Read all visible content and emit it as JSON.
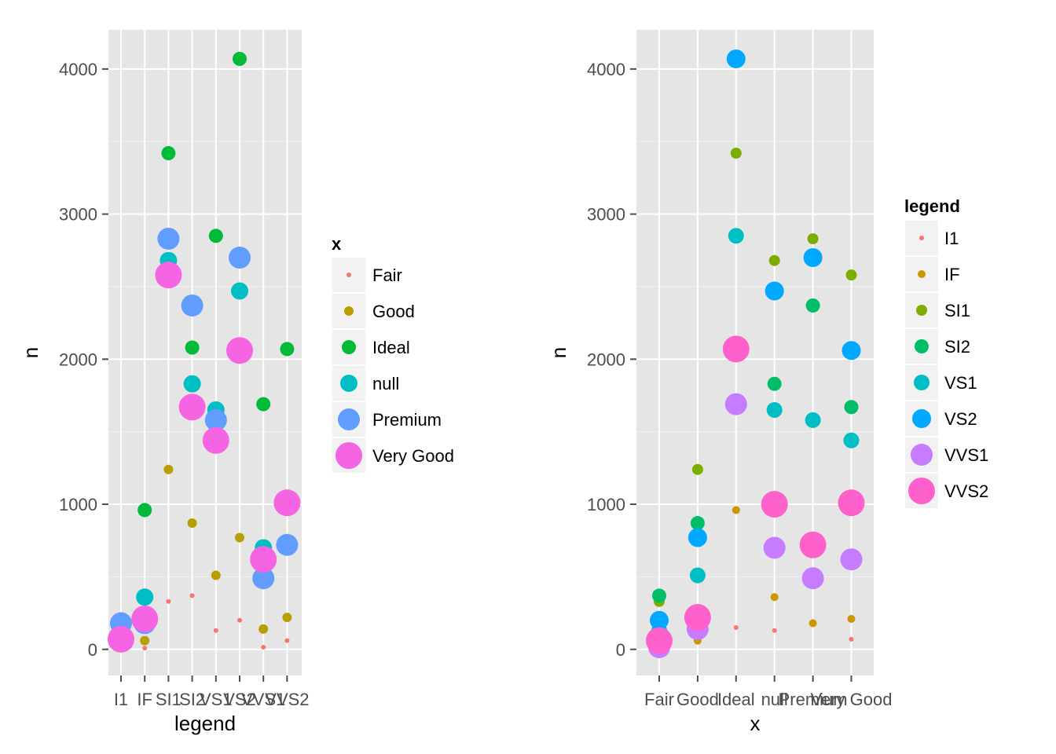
{
  "chart_data": [
    {
      "type": "scatter",
      "xlabel": "legend",
      "ylabel": "n",
      "ylim": [
        -180,
        4270
      ],
      "yticks": [
        0,
        1000,
        2000,
        3000,
        4000
      ],
      "ytick_labels": [
        "0",
        "1000",
        "2000",
        "3000",
        "4000"
      ],
      "categories": [
        "I1",
        "IF",
        "SI1",
        "SI2",
        "VS1",
        "VS2",
        "VVS1",
        "VVS2"
      ],
      "grid": true,
      "legend_title": "x",
      "legend_position": "right",
      "series": [
        {
          "name": "Fair",
          "color": "#F8766D",
          "size": 3,
          "values": [
            170,
            9,
            330,
            370,
            130,
            200,
            15,
            60
          ]
        },
        {
          "name": "Good",
          "color": "#B79F00",
          "size": 6,
          "values": [
            100,
            60,
            1240,
            870,
            510,
            770,
            140,
            220
          ]
        },
        {
          "name": "Ideal",
          "color": "#00BA38",
          "size": 9,
          "values": [
            150,
            960,
            3420,
            2080,
            2850,
            4070,
            1690,
            2070
          ]
        },
        {
          "name": "null",
          "color": "#00BFC4",
          "size": 11,
          "values": [
            130,
            360,
            2680,
            1830,
            1650,
            2470,
            700,
            1000
          ]
        },
        {
          "name": "Premium",
          "color": "#619CFF",
          "size": 14,
          "values": [
            180,
            180,
            2830,
            2370,
            1580,
            2700,
            490,
            720
          ]
        },
        {
          "name": "Very Good",
          "color": "#F564E3",
          "size": 17,
          "values": [
            70,
            210,
            2580,
            1670,
            1440,
            2060,
            620,
            1010
          ]
        }
      ]
    },
    {
      "type": "scatter",
      "xlabel": "x",
      "ylabel": "n",
      "ylim": [
        -180,
        4270
      ],
      "yticks": [
        0,
        1000,
        2000,
        3000,
        4000
      ],
      "ytick_labels": [
        "0",
        "1000",
        "2000",
        "3000",
        "4000"
      ],
      "categories": [
        "Fair",
        "Good",
        "Ideal",
        "null",
        "Premium",
        "Very Good"
      ],
      "grid": true,
      "legend_title": "legend",
      "legend_position": "right",
      "series": [
        {
          "name": "I1",
          "color": "#F8766D",
          "size": 3,
          "values": [
            170,
            100,
            150,
            130,
            180,
            70
          ]
        },
        {
          "name": "IF",
          "color": "#CD9600",
          "size": 5,
          "values": [
            9,
            60,
            960,
            360,
            180,
            210
          ]
        },
        {
          "name": "SI1",
          "color": "#7CAE00",
          "size": 7,
          "values": [
            330,
            1240,
            3420,
            2680,
            2830,
            2580
          ]
        },
        {
          "name": "SI2",
          "color": "#00BE67",
          "size": 9,
          "values": [
            370,
            870,
            2080,
            1830,
            2370,
            1670
          ]
        },
        {
          "name": "VS1",
          "color": "#00BFC4",
          "size": 10,
          "values": [
            130,
            510,
            2850,
            1650,
            1580,
            1440
          ]
        },
        {
          "name": "VS2",
          "color": "#00A9FF",
          "size": 12,
          "values": [
            200,
            770,
            4070,
            2470,
            2700,
            2060
          ]
        },
        {
          "name": "VVS1",
          "color": "#C77CFF",
          "size": 14,
          "values": [
            15,
            140,
            1690,
            700,
            490,
            620
          ]
        },
        {
          "name": "VVS2",
          "color": "#FF61CC",
          "size": 17,
          "values": [
            60,
            220,
            2070,
            1000,
            720,
            1010
          ]
        }
      ]
    }
  ]
}
